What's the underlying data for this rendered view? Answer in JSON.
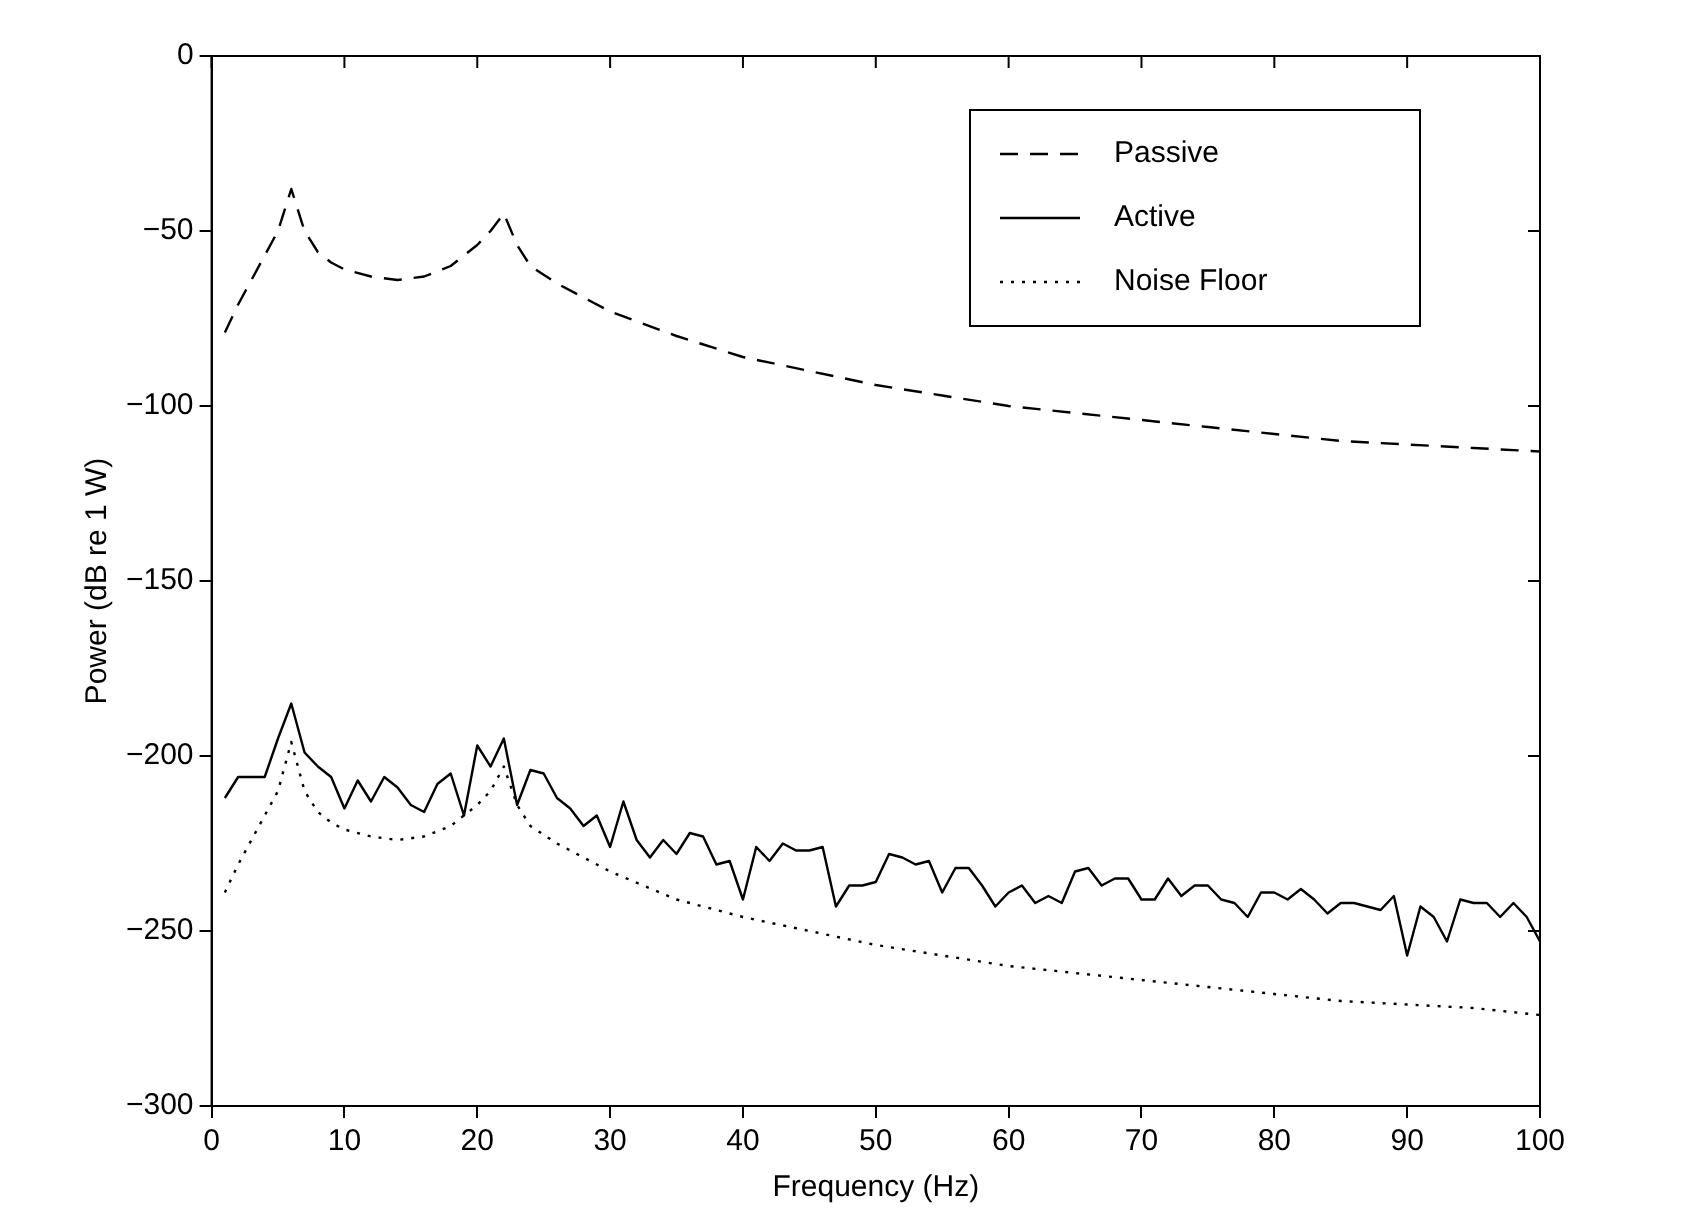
{
  "chart_data": {
    "type": "line",
    "xlabel": "Frequency (Hz)",
    "ylabel": "Power (dB re 1 W)",
    "xlim": [
      0,
      100
    ],
    "xticks": [
      0,
      10,
      20,
      30,
      40,
      50,
      60,
      70,
      80,
      90,
      100
    ],
    "ylim": [
      -300,
      0
    ],
    "yticks": [
      -300,
      -250,
      -200,
      -150,
      -100,
      -50,
      0
    ],
    "grid": false,
    "legend": "top right",
    "marker": "none",
    "series": [
      {
        "name": "Passive",
        "color": "#000000",
        "line_style": "dashed",
        "x": [
          1,
          2,
          3,
          4,
          5,
          6,
          7,
          8,
          9,
          10,
          12,
          14,
          16,
          18,
          20,
          21,
          22,
          23,
          24,
          26,
          28,
          30,
          35,
          40,
          45,
          50,
          55,
          60,
          65,
          70,
          75,
          80,
          85,
          90,
          95,
          100
        ],
        "values": [
          -79,
          -71,
          -64,
          -57,
          -50,
          -38,
          -50,
          -56,
          -59,
          -61,
          -63,
          -64,
          -63,
          -60,
          -54,
          -50,
          -45,
          -54,
          -60,
          -65,
          -69,
          -73,
          -80,
          -86,
          -90,
          -94,
          -97,
          -100,
          -102,
          -104,
          -106,
          -108,
          -110,
          -111,
          -112,
          -113
        ]
      },
      {
        "name": "Active",
        "color": "#000000",
        "line_style": "solid",
        "x": [
          1,
          2,
          3,
          4,
          5,
          6,
          7,
          8,
          9,
          10,
          11,
          12,
          13,
          14,
          15,
          16,
          17,
          18,
          19,
          20,
          21,
          22,
          23,
          24,
          25,
          26,
          27,
          28,
          29,
          30,
          31,
          32,
          33,
          34,
          35,
          36,
          37,
          38,
          39,
          40,
          41,
          42,
          43,
          44,
          45,
          46,
          47,
          48,
          49,
          50,
          51,
          52,
          53,
          54,
          55,
          56,
          57,
          58,
          59,
          60,
          61,
          62,
          63,
          64,
          65,
          66,
          67,
          68,
          69,
          70,
          71,
          72,
          73,
          74,
          75,
          76,
          77,
          78,
          79,
          80,
          81,
          82,
          83,
          84,
          85,
          86,
          87,
          88,
          89,
          90,
          91,
          92,
          93,
          94,
          95,
          96,
          97,
          98,
          99,
          100
        ],
        "values": [
          -212,
          -206,
          -206,
          -206,
          -195,
          -185,
          -199,
          -203,
          -206,
          -215,
          -207,
          -213,
          -206,
          -209,
          -214,
          -216,
          -208,
          -205,
          -217,
          -197,
          -203,
          -195,
          -214,
          -204,
          -205,
          -212,
          -215,
          -220,
          -217,
          -226,
          -213,
          -224,
          -229,
          -224,
          -228,
          -222,
          -223,
          -231,
          -230,
          -241,
          -226,
          -230,
          -225,
          -227,
          -227,
          -226,
          -243,
          -237,
          -237,
          -236,
          -228,
          -229,
          -231,
          -230,
          -239,
          -232,
          -232,
          -237,
          -243,
          -239,
          -237,
          -242,
          -240,
          -242,
          -233,
          -232,
          -237,
          -235,
          -235,
          -241,
          -241,
          -235,
          -240,
          -237,
          -237,
          -241,
          -242,
          -246,
          -239,
          -239,
          -241,
          -238,
          -241,
          -245,
          -242,
          -242,
          -243,
          -244,
          -240,
          -257,
          -243,
          -246,
          -253,
          -241,
          -242,
          -242,
          -246,
          -242,
          -246,
          -253
        ]
      },
      {
        "name": "Noise Floor",
        "color": "#000000",
        "line_style": "dotted",
        "x": [
          1,
          2,
          3,
          4,
          5,
          6,
          7,
          8,
          9,
          10,
          12,
          14,
          16,
          18,
          20,
          21,
          22,
          23,
          24,
          26,
          28,
          30,
          35,
          40,
          45,
          50,
          55,
          60,
          65,
          70,
          75,
          80,
          85,
          90,
          95,
          100
        ],
        "values": [
          -239,
          -231,
          -224,
          -217,
          -210,
          -196,
          -210,
          -216,
          -219,
          -221,
          -223,
          -224,
          -223,
          -220,
          -214,
          -210,
          -203,
          -214,
          -220,
          -225,
          -229,
          -233,
          -241,
          -246,
          -250,
          -254,
          -257,
          -260,
          -262,
          -264,
          -266,
          -268,
          -270,
          -271,
          -272,
          -274
        ]
      }
    ]
  }
}
